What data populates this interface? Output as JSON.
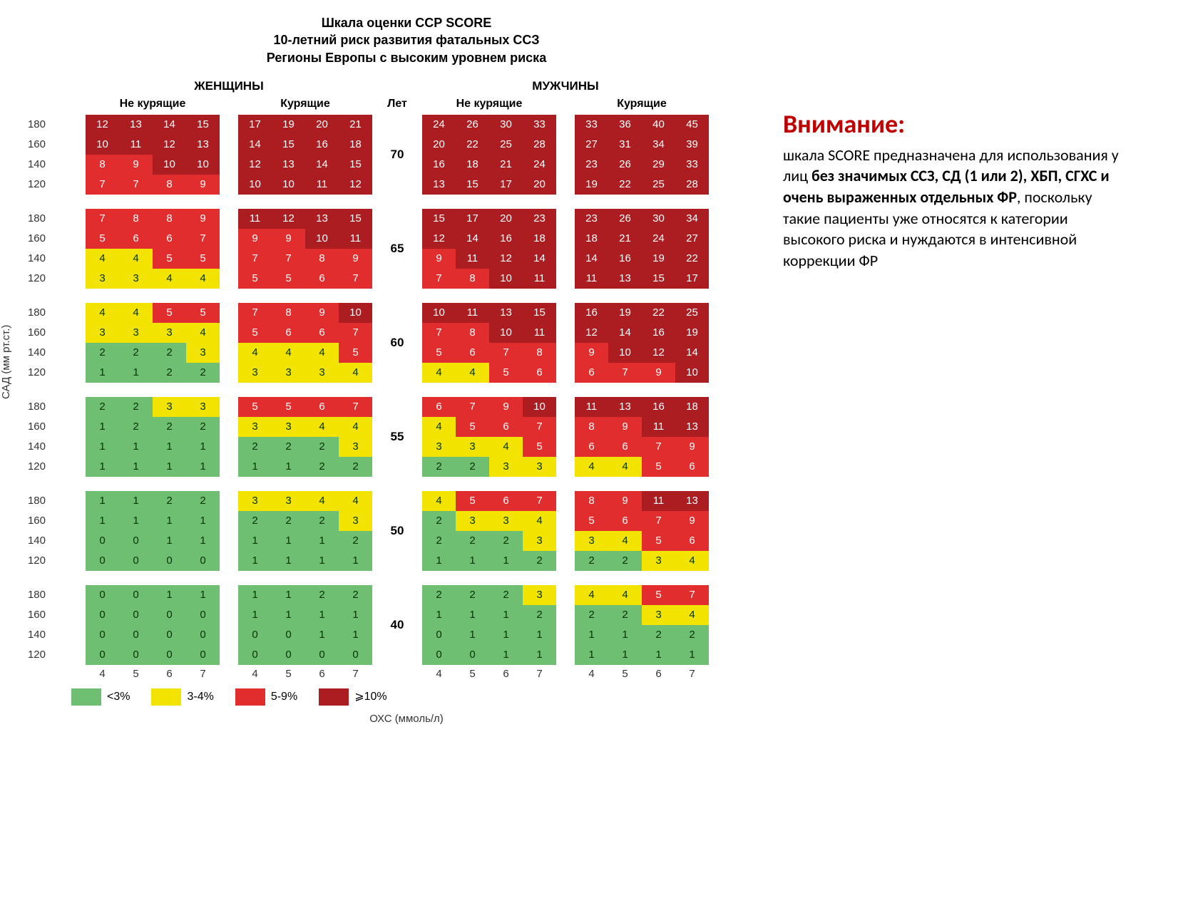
{
  "title1": "Шкала оценки ССР SCORE",
  "title2": "10-летний риск развития фатальных ССЗ",
  "title3": "Регионы Европы с высоким уровнем риска",
  "gender_women": "ЖЕНЩИНЫ",
  "gender_men": "МУЖЧИНЫ",
  "smoke_no": "Не курящие",
  "smoke_yes": "Курящие",
  "age_header": "Лет",
  "ylabel": "САД (мм рт.ст.)",
  "xlabel": "ОХС (ммоль/л)",
  "sbp": [
    180,
    160,
    140,
    120
  ],
  "chol": [
    4,
    5,
    6,
    7
  ],
  "ages": [
    70,
    65,
    60,
    55,
    50,
    40
  ],
  "colors": {
    "green": "#6fbf73",
    "yellow": "#f2e400",
    "red": "#e12d2d",
    "darkred": "#ab1d21",
    "text_light": "#ffffff",
    "text_dark": "#003300"
  },
  "legend": [
    {
      "color": "green",
      "label": "<3%"
    },
    {
      "color": "yellow",
      "label": "3-4%"
    },
    {
      "color": "red",
      "label": "5-9%"
    },
    {
      "color": "darkred",
      "label": "⩾10%"
    }
  ],
  "data": {
    "70": {
      "wn": [
        [
          12,
          13,
          14,
          15
        ],
        [
          10,
          11,
          12,
          13
        ],
        [
          8,
          9,
          10,
          10
        ],
        [
          7,
          7,
          8,
          9
        ]
      ],
      "ws": [
        [
          17,
          19,
          20,
          21
        ],
        [
          14,
          15,
          16,
          18
        ],
        [
          12,
          13,
          14,
          15
        ],
        [
          10,
          10,
          11,
          12
        ]
      ],
      "mn": [
        [
          24,
          26,
          30,
          33
        ],
        [
          20,
          22,
          25,
          28
        ],
        [
          16,
          18,
          21,
          24
        ],
        [
          13,
          15,
          17,
          20
        ]
      ],
      "ms": [
        [
          33,
          36,
          40,
          45
        ],
        [
          27,
          31,
          34,
          39
        ],
        [
          23,
          26,
          29,
          33
        ],
        [
          19,
          22,
          25,
          28
        ]
      ]
    },
    "65": {
      "wn": [
        [
          7,
          8,
          8,
          9
        ],
        [
          5,
          6,
          6,
          7
        ],
        [
          4,
          4,
          5,
          5
        ],
        [
          3,
          3,
          4,
          4
        ]
      ],
      "ws": [
        [
          11,
          12,
          13,
          15
        ],
        [
          9,
          9,
          10,
          11
        ],
        [
          7,
          7,
          8,
          9
        ],
        [
          5,
          5,
          6,
          7
        ]
      ],
      "mn": [
        [
          15,
          17,
          20,
          23
        ],
        [
          12,
          14,
          16,
          18
        ],
        [
          9,
          11,
          12,
          14
        ],
        [
          7,
          8,
          10,
          11
        ]
      ],
      "ms": [
        [
          23,
          26,
          30,
          34
        ],
        [
          18,
          21,
          24,
          27
        ],
        [
          14,
          16,
          19,
          22
        ],
        [
          11,
          13,
          15,
          17
        ]
      ]
    },
    "60": {
      "wn": [
        [
          4,
          4,
          5,
          5
        ],
        [
          3,
          3,
          3,
          4
        ],
        [
          2,
          2,
          2,
          3
        ],
        [
          1,
          1,
          2,
          2
        ]
      ],
      "ws": [
        [
          7,
          8,
          9,
          10
        ],
        [
          5,
          6,
          6,
          7
        ],
        [
          4,
          4,
          4,
          5
        ],
        [
          3,
          3,
          3,
          4
        ]
      ],
      "mn": [
        [
          10,
          11,
          13,
          15
        ],
        [
          7,
          8,
          10,
          11
        ],
        [
          5,
          6,
          7,
          8
        ],
        [
          4,
          4,
          5,
          6
        ]
      ],
      "ms": [
        [
          16,
          19,
          22,
          25
        ],
        [
          12,
          14,
          16,
          19
        ],
        [
          9,
          10,
          12,
          14
        ],
        [
          6,
          7,
          9,
          10
        ]
      ]
    },
    "55": {
      "wn": [
        [
          2,
          2,
          3,
          3
        ],
        [
          1,
          2,
          2,
          2
        ],
        [
          1,
          1,
          1,
          1
        ],
        [
          1,
          1,
          1,
          1
        ]
      ],
      "ws": [
        [
          5,
          5,
          6,
          7
        ],
        [
          3,
          3,
          4,
          4
        ],
        [
          2,
          2,
          2,
          3
        ],
        [
          1,
          1,
          2,
          2
        ]
      ],
      "mn": [
        [
          6,
          7,
          9,
          10
        ],
        [
          4,
          5,
          6,
          7
        ],
        [
          3,
          3,
          4,
          5
        ],
        [
          2,
          2,
          3,
          3
        ]
      ],
      "ms": [
        [
          11,
          13,
          16,
          18
        ],
        [
          8,
          9,
          11,
          13
        ],
        [
          6,
          6,
          7,
          9
        ],
        [
          4,
          4,
          5,
          6
        ]
      ]
    },
    "50": {
      "wn": [
        [
          1,
          1,
          2,
          2
        ],
        [
          1,
          1,
          1,
          1
        ],
        [
          0,
          0,
          1,
          1
        ],
        [
          0,
          0,
          0,
          0
        ]
      ],
      "ws": [
        [
          3,
          3,
          4,
          4
        ],
        [
          2,
          2,
          2,
          3
        ],
        [
          1,
          1,
          1,
          2
        ],
        [
          1,
          1,
          1,
          1
        ]
      ],
      "mn": [
        [
          4,
          5,
          6,
          7
        ],
        [
          2,
          3,
          3,
          4
        ],
        [
          2,
          2,
          2,
          3
        ],
        [
          1,
          1,
          1,
          2
        ]
      ],
      "ms": [
        [
          8,
          9,
          11,
          13
        ],
        [
          5,
          6,
          7,
          9
        ],
        [
          3,
          4,
          5,
          6
        ],
        [
          2,
          2,
          3,
          4
        ]
      ]
    },
    "40": {
      "wn": [
        [
          0,
          0,
          1,
          1
        ],
        [
          0,
          0,
          0,
          0
        ],
        [
          0,
          0,
          0,
          0
        ],
        [
          0,
          0,
          0,
          0
        ]
      ],
      "ws": [
        [
          1,
          1,
          2,
          2
        ],
        [
          1,
          1,
          1,
          1
        ],
        [
          0,
          0,
          1,
          1
        ],
        [
          0,
          0,
          0,
          0
        ]
      ],
      "mn": [
        [
          2,
          2,
          2,
          3
        ],
        [
          1,
          1,
          1,
          2
        ],
        [
          0,
          1,
          1,
          1
        ],
        [
          0,
          0,
          1,
          1
        ]
      ],
      "ms": [
        [
          4,
          4,
          5,
          7
        ],
        [
          2,
          2,
          3,
          4
        ],
        [
          1,
          1,
          2,
          2
        ],
        [
          1,
          1,
          1,
          1
        ]
      ]
    }
  },
  "note": {
    "title": "Внимание:",
    "t1": "шкала SCORE предназначена для использования у лиц ",
    "b1": "без значимых ССЗ, СД (1 или 2), ХБП, СГХС и очень выраженных отдельных ФР",
    "t2": ", поскольку такие пациенты уже относятся к категории высокого риска и нуждаются в интенсивной коррекции ФР"
  }
}
